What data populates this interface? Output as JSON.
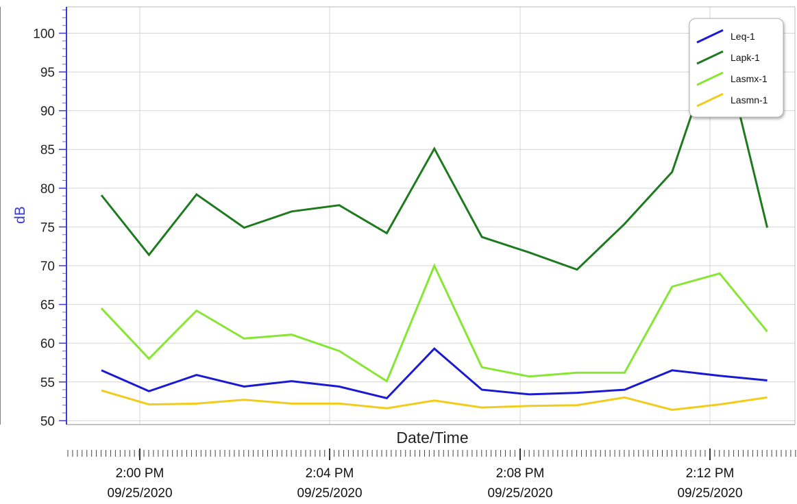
{
  "chart_data": {
    "type": "line",
    "xlabel": "Date/Time",
    "ylabel": "dB",
    "x": [
      "1:59 PM",
      "2:00 PM",
      "2:01 PM",
      "2:02 PM",
      "2:03 PM",
      "2:04 PM",
      "2:05 PM",
      "2:06 PM",
      "2:07 PM",
      "2:08 PM",
      "2:09 PM",
      "2:10 PM",
      "2:11 PM",
      "2:12 PM",
      "2:13 PM"
    ],
    "x_range": [
      "1:58 PM 09/25/2020",
      "2:14 PM 09/25/2020"
    ],
    "ylim": [
      49.5,
      103.4
    ],
    "yticks": [
      50,
      55,
      60,
      65,
      70,
      75,
      80,
      85,
      90,
      95,
      100
    ],
    "xticks": [
      {
        "t": 1,
        "time": "2:00 PM",
        "date": "09/25/2020"
      },
      {
        "t": 5,
        "time": "2:04 PM",
        "date": "09/25/2020"
      },
      {
        "t": 9,
        "time": "2:08 PM",
        "date": "09/25/2020"
      },
      {
        "t": 13,
        "time": "2:12 PM",
        "date": "09/25/2020"
      }
    ],
    "grid": true,
    "legend_position": "top-right",
    "series": [
      {
        "name": "Leq-1",
        "color": "#1a1ad0",
        "values": [
          56.5,
          53.8,
          55.9,
          54.4,
          55.1,
          54.4,
          52.9,
          59.3,
          54.0,
          53.4,
          53.6,
          54.0,
          56.5,
          55.8,
          55.2
        ]
      },
      {
        "name": "Lapk-1",
        "color": "#1e7a1e",
        "values": [
          79.1,
          71.4,
          79.2,
          74.9,
          77.0,
          77.8,
          74.2,
          85.1,
          73.7,
          71.7,
          69.5,
          75.4,
          82.1,
          100.2,
          74.9
        ]
      },
      {
        "name": "Lasmx-1",
        "color": "#86e633",
        "values": [
          64.5,
          58.0,
          64.2,
          60.6,
          61.1,
          59.0,
          55.1,
          70.0,
          56.9,
          55.7,
          56.2,
          56.2,
          67.3,
          69.0,
          61.5
        ]
      },
      {
        "name": "Lasmn-1",
        "color": "#f2cc1d",
        "values": [
          53.9,
          52.1,
          52.2,
          52.7,
          52.2,
          52.2,
          51.6,
          52.6,
          51.7,
          51.9,
          52.0,
          53.0,
          51.4,
          52.1,
          53.0
        ]
      }
    ]
  }
}
